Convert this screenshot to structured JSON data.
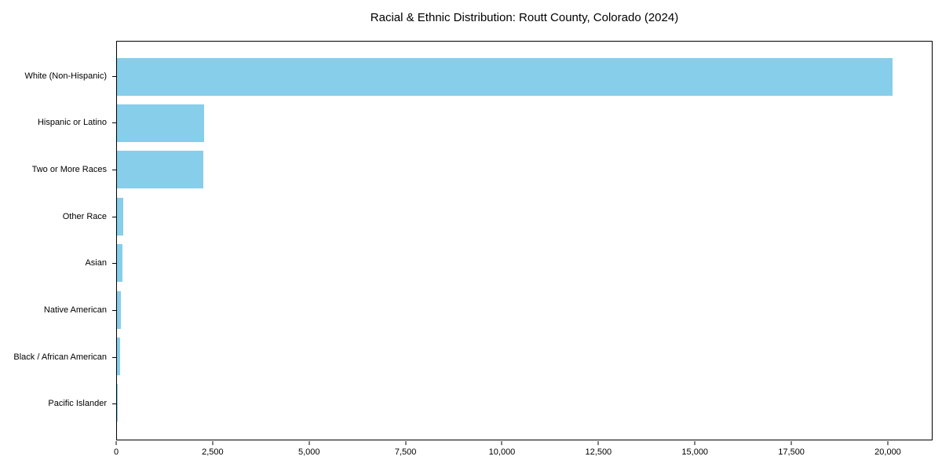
{
  "chart_data": {
    "type": "bar",
    "orientation": "horizontal",
    "title": "Racial & Ethnic Distribution: Routt County, Colorado (2024)",
    "categories": [
      "White (Non-Hispanic)",
      "Hispanic or Latino",
      "Two or More Races",
      "Other Race",
      "Asian",
      "Native American",
      "Black / African American",
      "Pacific Islander"
    ],
    "values": [
      20100,
      2260,
      2240,
      155,
      150,
      95,
      75,
      20
    ],
    "xlabel": "",
    "ylabel": "",
    "xlim": [
      0,
      21160
    ],
    "xticks": [
      0,
      2500,
      5000,
      7500,
      10000,
      12500,
      15000,
      17500,
      20000
    ],
    "xtick_labels": [
      "0",
      "2,500",
      "5,000",
      "7,500",
      "10,000",
      "12,500",
      "15,000",
      "17,500",
      "20,000"
    ],
    "grid": false,
    "legend_position": "none",
    "colors": {
      "bar": "#87CEEB",
      "axis": "#000000",
      "text": "#000000",
      "background": "#FFFFFF"
    }
  }
}
